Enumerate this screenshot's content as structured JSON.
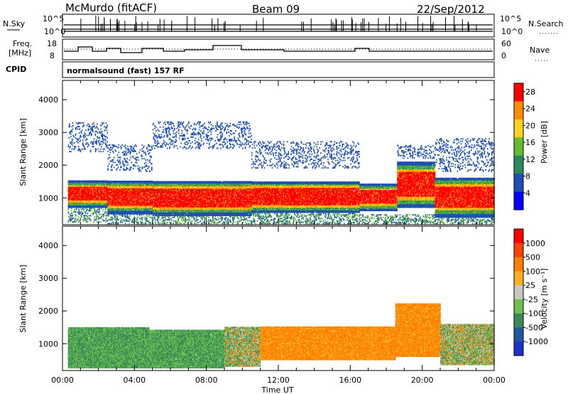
{
  "header": {
    "station": "McMurdo (fitACF)",
    "beam": "Beam 09",
    "date": "22/Sep/2012"
  },
  "top_panel": {
    "nsky_label": "N.Sky",
    "nsky_ticks": [
      "10^5",
      "10^0"
    ],
    "nsearch_label": "N.Search",
    "nsearch_ticks": [
      "10^5",
      "10^0"
    ],
    "freq_label": "Freq.",
    "freq_unit": "[MHz]",
    "freq_ticks": [
      "18",
      "8"
    ],
    "nave_label": "Nave",
    "nave_ticks": [
      "60",
      "0"
    ],
    "cpid_label": "CPID",
    "cpid_value": "normalsound (fast) 157 RF"
  },
  "chart_data": [
    {
      "type": "heatmap",
      "panel": "power",
      "xlabel": "Time UT",
      "ylabel": "Slant Range [km]",
      "x_ticks": [
        "00:00",
        "04:00",
        "08:00",
        "12:00",
        "16:00",
        "20:00",
        "00:00"
      ],
      "y_ticks": [
        1000,
        2000,
        3000,
        4000
      ],
      "xlim_hours": [
        0,
        24
      ],
      "ylim_km": [
        180,
        4590
      ],
      "colorbar": {
        "label": "Power [dB]",
        "ticks": [
          4,
          8,
          12,
          16,
          20,
          24,
          28
        ],
        "range": [
          0,
          30
        ],
        "colors": [
          "#0000ff",
          "#1e4fb4",
          "#2a8a5a",
          "#66bb33",
          "#ffd21e",
          "#ff8c00",
          "#ff0000"
        ]
      },
      "bands": [
        {
          "start": 0.3,
          "end": 2.5,
          "ranges": [
            [
              250,
              700,
              "low"
            ],
            [
              700,
              1500,
              "main"
            ],
            [
              2400,
              3300,
              "sparse"
            ]
          ]
        },
        {
          "start": 2.5,
          "end": 5.0,
          "ranges": [
            [
              200,
              500,
              "low"
            ],
            [
              500,
              1500,
              "main"
            ],
            [
              1800,
              2600,
              "sparse"
            ]
          ]
        },
        {
          "start": 5.0,
          "end": 10.5,
          "ranges": [
            [
              200,
              500,
              "low"
            ],
            [
              450,
              1500,
              "main"
            ],
            [
              2500,
              3300,
              "sparse"
            ]
          ]
        },
        {
          "start": 10.5,
          "end": 16.5,
          "ranges": [
            [
              200,
              600,
              "low"
            ],
            [
              550,
              1500,
              "main"
            ],
            [
              1900,
              2700,
              "sparse"
            ]
          ]
        },
        {
          "start": 16.5,
          "end": 18.6,
          "ranges": [
            [
              200,
              500,
              "low"
            ],
            [
              600,
              1400,
              "main"
            ]
          ]
        },
        {
          "start": 18.6,
          "end": 20.7,
          "ranges": [
            [
              200,
              500,
              "low"
            ],
            [
              700,
              2100,
              "main"
            ],
            [
              2200,
              2600,
              "sparse"
            ]
          ]
        },
        {
          "start": 20.7,
          "end": 24.0,
          "ranges": [
            [
              200,
              500,
              "low"
            ],
            [
              400,
              1600,
              "main"
            ],
            [
              1800,
              2800,
              "sparse"
            ]
          ]
        }
      ]
    },
    {
      "type": "heatmap",
      "panel": "velocity",
      "xlabel": "Time UT",
      "ylabel": "Slant Range [km]",
      "x_ticks": [
        "00:00",
        "04:00",
        "08:00",
        "12:00",
        "16:00",
        "20:00",
        "00:00"
      ],
      "y_ticks": [
        1000,
        2000,
        3000,
        4000
      ],
      "xlim_hours": [
        0,
        24
      ],
      "ylim_km": [
        180,
        4590
      ],
      "colorbar": {
        "label": "Velocity [m s⁻¹]",
        "ticks": [
          "1000",
          "500",
          "100",
          "25",
          "-25",
          "-100",
          "-500",
          "-1000"
        ],
        "colors": [
          "#1c33c8",
          "#2058a0",
          "#3a8a5a",
          "#6cc24a",
          "#c8c8c0",
          "#ffb020",
          "#ff8000",
          "#ff4000",
          "#ff0000"
        ]
      },
      "bands": [
        {
          "start": 0.3,
          "end": 4.8,
          "ranges": [
            [
              250,
              1500,
              "toward"
            ]
          ]
        },
        {
          "start": 4.8,
          "end": 9.0,
          "ranges": [
            [
              250,
              1400,
              "toward"
            ]
          ]
        },
        {
          "start": 9.0,
          "end": 11.0,
          "ranges": [
            [
              300,
              1500,
              "mixed"
            ]
          ]
        },
        {
          "start": 11.0,
          "end": 18.5,
          "ranges": [
            [
              500,
              1500,
              "away"
            ]
          ]
        },
        {
          "start": 18.5,
          "end": 21.0,
          "ranges": [
            [
              600,
              2200,
              "away"
            ]
          ]
        },
        {
          "start": 21.0,
          "end": 24.0,
          "ranges": [
            [
              350,
              1600,
              "mixed"
            ]
          ]
        }
      ]
    }
  ]
}
